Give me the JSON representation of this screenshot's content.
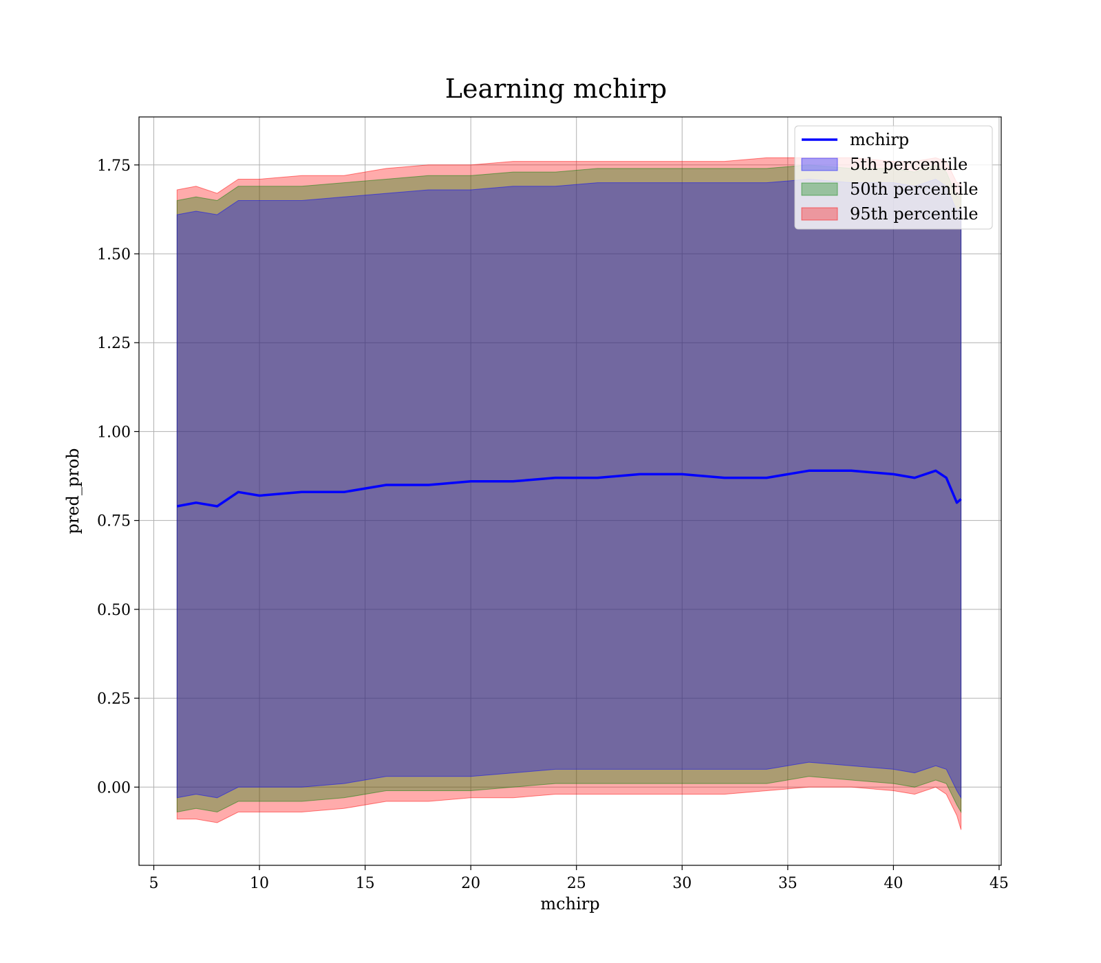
{
  "chart_data": {
    "type": "line",
    "title": "Learning mchirp",
    "xlabel": "mchirp",
    "ylabel": "pred_prob",
    "xlim": [
      4.3,
      45.1
    ],
    "ylim": [
      -0.22,
      1.885
    ],
    "xticks": [
      5,
      10,
      15,
      20,
      25,
      30,
      35,
      40,
      45
    ],
    "yticks": [
      0.0,
      0.25,
      0.5,
      0.75,
      1.0,
      1.25,
      1.5,
      1.75
    ],
    "xtick_labels": [
      "5",
      "10",
      "15",
      "20",
      "25",
      "30",
      "35",
      "40",
      "45"
    ],
    "ytick_labels": [
      "0.00",
      "0.25",
      "0.50",
      "0.75",
      "1.00",
      "1.25",
      "1.50",
      "1.75"
    ],
    "grid": true,
    "legend_position": "top-right",
    "x": [
      6.1,
      7.0,
      8.0,
      9.0,
      10.0,
      12.0,
      14.0,
      16.0,
      18.0,
      20.0,
      22.0,
      24.0,
      26.0,
      28.0,
      30.0,
      32.0,
      34.0,
      36.0,
      38.0,
      40.0,
      41.0,
      42.0,
      42.5,
      43.0,
      43.2
    ],
    "series": [
      {
        "name": "mchirp",
        "kind": "line",
        "color": "#0000ff",
        "values": [
          0.79,
          0.8,
          0.79,
          0.83,
          0.82,
          0.83,
          0.83,
          0.85,
          0.85,
          0.86,
          0.86,
          0.87,
          0.87,
          0.88,
          0.88,
          0.87,
          0.87,
          0.89,
          0.89,
          0.88,
          0.87,
          0.89,
          0.87,
          0.8,
          0.81
        ]
      },
      {
        "name": "5th percentile",
        "kind": "band",
        "color": "#0000ff",
        "lower": [
          -0.03,
          -0.02,
          -0.03,
          0.0,
          0.0,
          0.0,
          0.01,
          0.03,
          0.03,
          0.03,
          0.04,
          0.05,
          0.05,
          0.05,
          0.05,
          0.05,
          0.05,
          0.07,
          0.06,
          0.05,
          0.04,
          0.06,
          0.05,
          -0.01,
          -0.03
        ],
        "upper": [
          1.61,
          1.62,
          1.61,
          1.65,
          1.65,
          1.65,
          1.66,
          1.67,
          1.68,
          1.68,
          1.69,
          1.69,
          1.7,
          1.7,
          1.7,
          1.7,
          1.7,
          1.71,
          1.7,
          1.7,
          1.69,
          1.71,
          1.69,
          1.62,
          1.63
        ]
      },
      {
        "name": "50th percentile",
        "kind": "band",
        "color": "#008000",
        "lower": [
          -0.07,
          -0.06,
          -0.07,
          -0.04,
          -0.04,
          -0.04,
          -0.03,
          -0.01,
          -0.01,
          -0.01,
          0.0,
          0.01,
          0.01,
          0.01,
          0.01,
          0.01,
          0.01,
          0.03,
          0.02,
          0.01,
          0.0,
          0.02,
          0.01,
          -0.05,
          -0.07
        ],
        "upper": [
          1.65,
          1.66,
          1.65,
          1.69,
          1.69,
          1.69,
          1.7,
          1.71,
          1.72,
          1.72,
          1.73,
          1.73,
          1.74,
          1.74,
          1.74,
          1.74,
          1.74,
          1.75,
          1.74,
          1.74,
          1.73,
          1.75,
          1.73,
          1.66,
          1.67
        ]
      },
      {
        "name": "95th percentile",
        "kind": "band",
        "color": "#ff0000",
        "lower": [
          -0.09,
          -0.09,
          -0.1,
          -0.07,
          -0.07,
          -0.07,
          -0.06,
          -0.04,
          -0.04,
          -0.03,
          -0.03,
          -0.02,
          -0.02,
          -0.02,
          -0.02,
          -0.02,
          -0.01,
          0.0,
          0.0,
          -0.01,
          -0.02,
          0.0,
          -0.02,
          -0.08,
          -0.12
        ],
        "upper": [
          1.68,
          1.69,
          1.67,
          1.71,
          1.71,
          1.72,
          1.72,
          1.74,
          1.75,
          1.75,
          1.76,
          1.76,
          1.76,
          1.76,
          1.76,
          1.76,
          1.77,
          1.77,
          1.77,
          1.76,
          1.76,
          1.77,
          1.76,
          1.7,
          1.7
        ]
      }
    ]
  }
}
